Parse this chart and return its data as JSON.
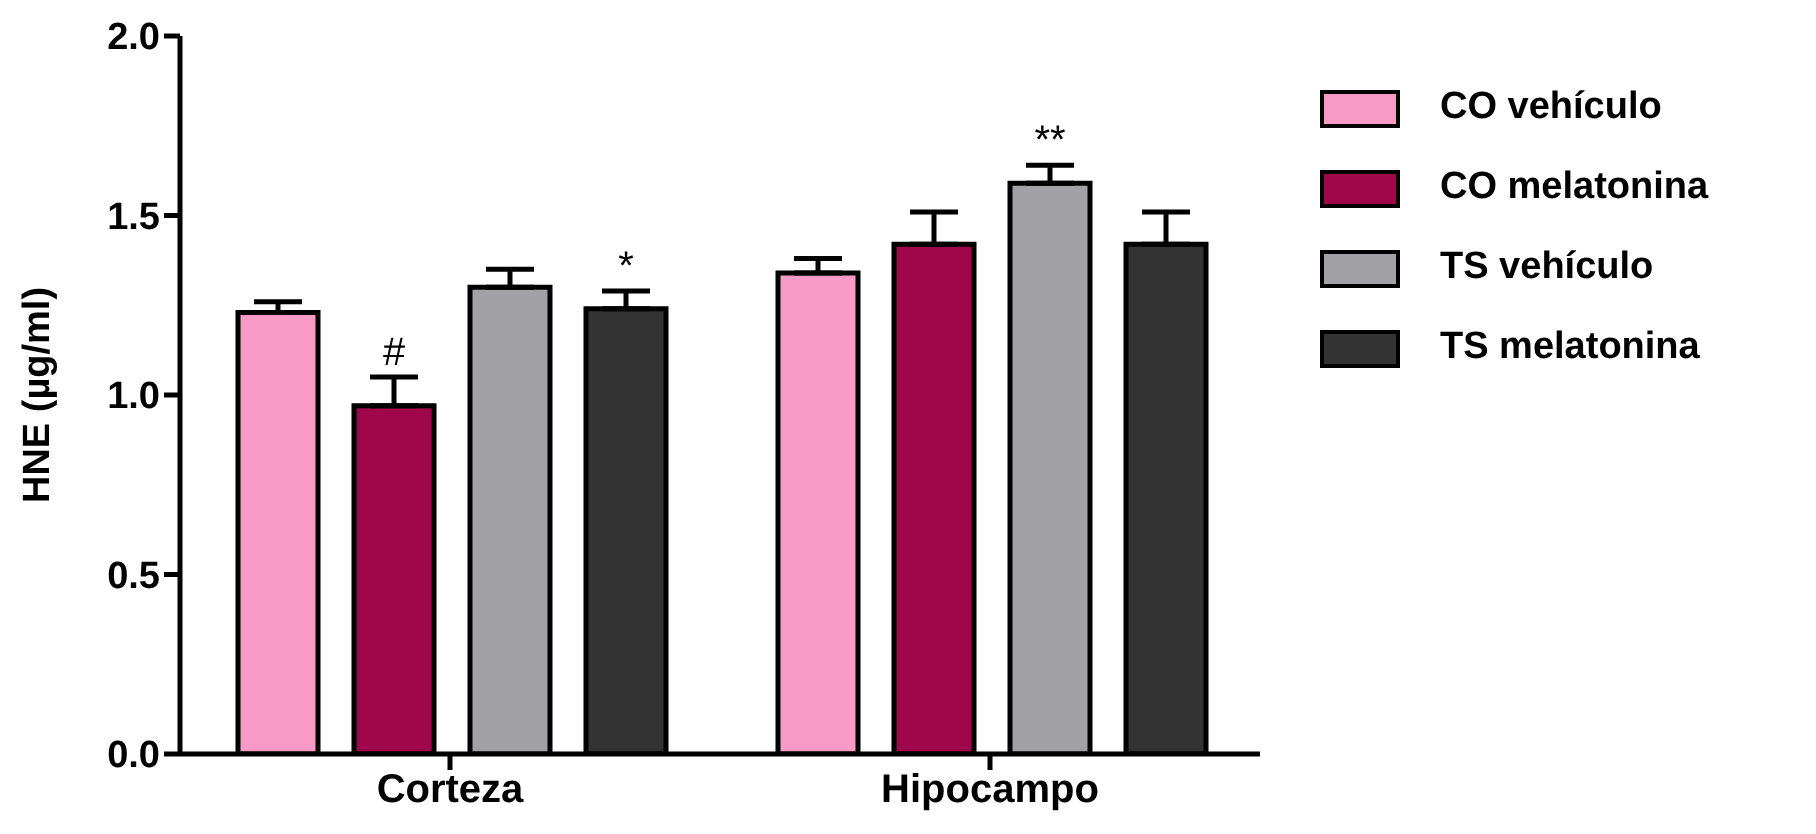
{
  "chart_data": {
    "type": "bar",
    "ylabel": "HNE (µg/ml)",
    "categories": [
      "Corteza",
      "Hipocampo"
    ],
    "series": [
      {
        "name": "CO vehículo",
        "color": "#f899c6",
        "values": [
          1.23,
          1.34
        ],
        "errors": [
          0.03,
          0.04
        ]
      },
      {
        "name": "CO melatonina",
        "color": "#a0074b",
        "values": [
          0.97,
          1.42
        ],
        "errors": [
          0.08,
          0.09
        ],
        "value_labels": [
          "#",
          null
        ]
      },
      {
        "name": "TS vehículo",
        "color": "#a2a1a6",
        "values": [
          1.3,
          1.59
        ],
        "errors": [
          0.05,
          0.05
        ],
        "value_labels": [
          null,
          "**"
        ]
      },
      {
        "name": "TS melatonina",
        "color": "#333333",
        "values": [
          1.24,
          1.42
        ],
        "errors": [
          0.05,
          0.09
        ],
        "value_labels": [
          "*",
          null
        ]
      }
    ],
    "ylim": [
      0,
      2
    ],
    "yticks": [
      {
        "value": 0,
        "label": "0.0"
      },
      {
        "value": 0.5,
        "label": "0.5"
      },
      {
        "value": 1,
        "label": "1.0"
      },
      {
        "value": 1.5,
        "label": "1.5"
      },
      {
        "value": 2,
        "label": "2.0"
      }
    ],
    "grid": false,
    "legend": "top right"
  }
}
